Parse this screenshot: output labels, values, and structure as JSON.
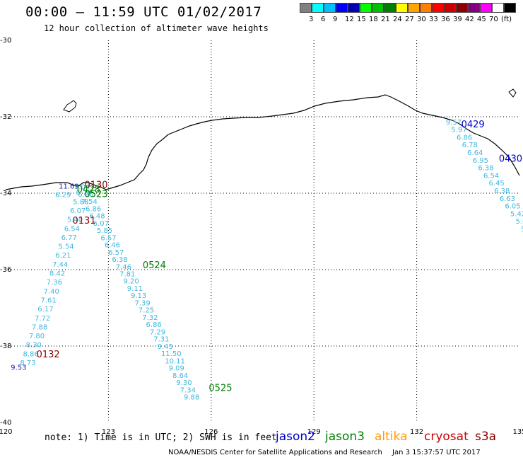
{
  "header": {
    "title": "00:00 — 11:59 UTC 01/02/2017",
    "subtitle": "12 hour collection of altimeter wave heights"
  },
  "legend": {
    "ticks": [
      "3",
      "6",
      "9",
      "12",
      "15",
      "18",
      "21",
      "24",
      "27",
      "30",
      "33",
      "36",
      "39",
      "42",
      "45",
      "70",
      "(ft)"
    ],
    "colors": [
      "#808080",
      "#00ffff",
      "#00bfff",
      "#0000ff",
      "#0000b0",
      "#00ff00",
      "#00c000",
      "#008000",
      "#ffff00",
      "#ffa500",
      "#ff7f00",
      "#ff0000",
      "#cc0000",
      "#8b0000",
      "#800080",
      "#ff00ff",
      "#ffffff",
      "#000000"
    ]
  },
  "axes": {
    "lon_ticks": [
      "120",
      "123",
      "126",
      "129",
      "132",
      "135"
    ],
    "lat_ticks": [
      "-30",
      "-32",
      "-34",
      "-36",
      "-38",
      "-40"
    ],
    "xlim": [
      120,
      135
    ],
    "ylim": [
      -40,
      -30
    ]
  },
  "passes": [
    {
      "name": "west-descending",
      "color": "#40b8e0",
      "start": [
        122.05,
        -34.05
      ],
      "end": [
        120.42,
        -38.5
      ],
      "values": [
        "6.70",
        "5.88",
        "6.07",
        "5.40",
        "6.54",
        "6.77",
        "5.54",
        "6.21",
        "7.44",
        "8.42",
        "7.36",
        "7.40",
        "7.61",
        "6.17",
        "7.72",
        "7.88",
        "7.80",
        "8.30",
        "8.86",
        "8.73"
      ]
    },
    {
      "name": "central-descending",
      "color": "#40b8e0",
      "start": [
        122.0,
        -33.9
      ],
      "end": [
        125.2,
        -39.4
      ],
      "values": [
        "7.04",
        "6.30",
        "7.54",
        "6.86",
        "6.48",
        "6.07",
        "5.85",
        "6.57",
        "6.46",
        "6.57",
        "6.38",
        "7.46",
        "7.81",
        "9.20",
        "9.11",
        "9.13",
        "7.39",
        "7.25",
        "7.32",
        "6.86",
        "7.29",
        "7.31",
        "9.45",
        "11.50",
        "10.11",
        "9.09",
        "8.64",
        "9.30",
        "7.34",
        "9.88"
      ]
    },
    {
      "name": "east-descending",
      "color": "#40b8e0",
      "start": [
        132.85,
        -32.2
      ],
      "end": [
        135.2,
        -35.2
      ],
      "values": [
        "9.57",
        "5.97",
        "6.86",
        "6.78",
        "6.64",
        "6.95",
        "6.38",
        "6.54",
        "6.45",
        "6.38",
        "6.63",
        "6.05",
        "5.42",
        "5.60",
        "5.6",
        "5"
      ]
    }
  ],
  "extra_labels": [
    {
      "text": "11.69",
      "lon": 121.55,
      "lat": -33.88,
      "color": "#1d1dab",
      "size": 10
    },
    {
      "text": "6.29",
      "lon": 121.45,
      "lat": -34.1,
      "color": "#40b8e0",
      "size": 10
    },
    {
      "text": "9.53",
      "lon": 120.15,
      "lat": -38.62,
      "color": "#1d1dab",
      "size": 10
    }
  ],
  "time_labels": [
    {
      "text": "0130",
      "lon": 122.3,
      "lat": -33.86,
      "color": "#8b0000",
      "size": 13
    },
    {
      "text": "0428",
      "lon": 122.08,
      "lat": -33.98,
      "color": "#008000",
      "size": 13
    },
    {
      "text": "0523",
      "lon": 122.3,
      "lat": -34.1,
      "color": "#008000",
      "size": 13
    },
    {
      "text": "0131",
      "lon": 121.95,
      "lat": -34.8,
      "color": "#8b0000",
      "size": 13
    },
    {
      "text": "0524",
      "lon": 124.0,
      "lat": -35.96,
      "color": "#008000",
      "size": 13
    },
    {
      "text": "0132",
      "lon": 120.9,
      "lat": -38.3,
      "color": "#8b0000",
      "size": 13
    },
    {
      "text": "0525",
      "lon": 125.93,
      "lat": -39.18,
      "color": "#008000",
      "size": 13
    },
    {
      "text": "0429",
      "lon": 133.3,
      "lat": -32.28,
      "color": "#0000cc",
      "size": 13
    },
    {
      "text": "0430",
      "lon": 134.4,
      "lat": -33.18,
      "color": "#0000cc",
      "size": 13
    }
  ],
  "footer": {
    "note": "note: 1) Time is in UTC; 2) SWH is in feet",
    "satellites": [
      {
        "name": "jason2",
        "color": "#0000cc"
      },
      {
        "name": "jason3",
        "color": "#008000"
      },
      {
        "name": "altika",
        "color": "#ff9900"
      },
      {
        "name": "cryosat",
        "color": "#cc0000"
      },
      {
        "name": "s3a",
        "color": "#8b0000"
      }
    ],
    "credit": "NOAA/NESDIS Center for Satellite Applications and Research",
    "timestamp": "Jan  3 15:37:57 UTC 2017"
  }
}
